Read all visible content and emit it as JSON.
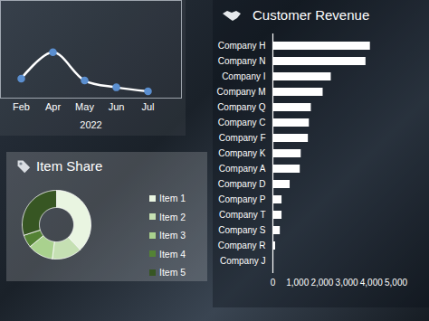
{
  "chart_data": [
    {
      "type": "line",
      "categories": [
        "Feb",
        "Apr",
        "May",
        "Jun",
        "Jul"
      ],
      "values": [
        20,
        47,
        18,
        11,
        7
      ],
      "xlabel": "2022",
      "ylim": [
        0,
        100
      ],
      "tick_labels": "x",
      "color": "#ffffff",
      "marker": "circle"
    },
    {
      "type": "donut",
      "title": "Item Share",
      "categories": [
        "Item 1",
        "Item 2",
        "Item 3",
        "Item 4",
        "Item 5"
      ],
      "values": [
        38,
        14,
        12,
        6,
        30
      ],
      "colors": [
        "#e9f5e1",
        "#c5e0b3",
        "#a9d18e",
        "#548235",
        "#375623"
      ],
      "legend": "right"
    },
    {
      "type": "bar",
      "title": "Customer Revenue",
      "orientation": "horizontal",
      "categories": [
        "Company H",
        "Company N",
        "Company I",
        "Company M",
        "Company Q",
        "Company C",
        "Company F",
        "Company K",
        "Company A",
        "Company D",
        "Company P",
        "Company T",
        "Company S",
        "Company R",
        "Company J"
      ],
      "values": [
        3960,
        3780,
        2370,
        2040,
        1560,
        1480,
        1440,
        1150,
        1110,
        700,
        370,
        370,
        300,
        110,
        30
      ],
      "color": "#ffffff",
      "xlim": [
        0,
        5000
      ],
      "xticks": [
        0,
        {
          "value": 1000,
          "label": "1,000"
        },
        {
          "value": 2000,
          "label": "2,000"
        },
        {
          "value": 3000,
          "label": "3,000"
        },
        {
          "value": 4000,
          "label": "4,000"
        },
        {
          "value": 5000,
          "label": "5,000"
        }
      ]
    }
  ]
}
